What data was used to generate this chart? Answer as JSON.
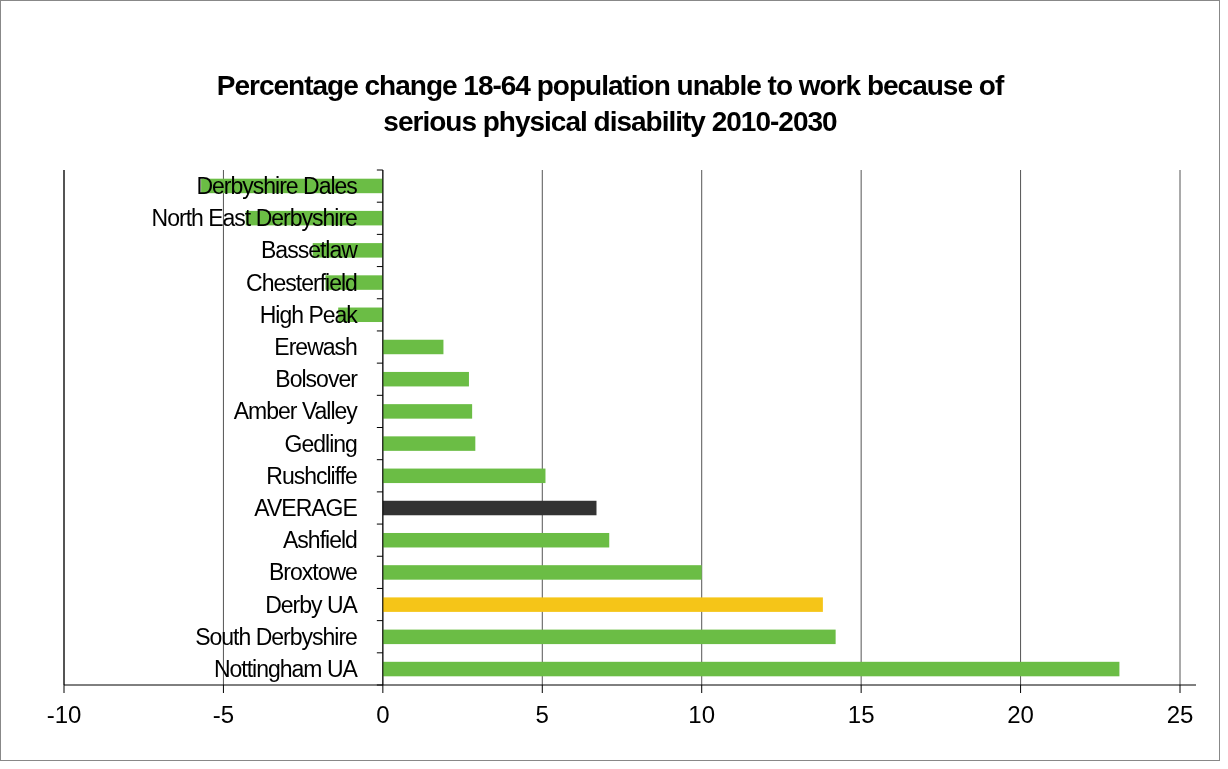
{
  "chart_data": {
    "type": "bar",
    "orientation": "horizontal",
    "title": "Percentage change 18-64 population unable to work because of serious physical disability 2010-2030",
    "categories": [
      "Derbyshire Dales",
      "North East Derbyshire",
      "Bassetlaw",
      "Chesterfield",
      "High Peak",
      "Erewash",
      "Bolsover",
      "Amber Valley",
      "Gedling",
      "Rushcliffe",
      "AVERAGE",
      "Ashfield",
      "Broxtowe",
      "Derby UA",
      "South Derbyshire",
      "Nottingham UA"
    ],
    "values": [
      -5.7,
      -4.3,
      -2.2,
      -1.8,
      -1.4,
      1.9,
      2.7,
      2.8,
      2.9,
      5.1,
      6.7,
      7.1,
      10,
      13.8,
      14.2,
      23.1
    ],
    "colors": [
      "#6bbd45",
      "#6bbd45",
      "#6bbd45",
      "#6bbd45",
      "#6bbd45",
      "#6bbd45",
      "#6bbd45",
      "#6bbd45",
      "#6bbd45",
      "#6bbd45",
      "#333333",
      "#6bbd45",
      "#6bbd45",
      "#f5c518",
      "#6bbd45",
      "#6bbd45"
    ],
    "xlim": [
      -10,
      25
    ],
    "xticks": [
      -10,
      -5,
      0,
      5,
      10,
      15,
      20,
      25
    ],
    "grid": "x"
  }
}
